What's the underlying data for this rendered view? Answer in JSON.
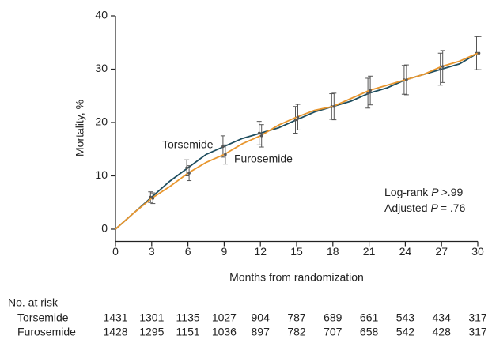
{
  "chart_data": {
    "type": "line",
    "xlabel": "Months from randomization",
    "ylabel": "Mortality, %",
    "xlim": [
      0,
      30
    ],
    "ylim": [
      -2.3,
      40
    ],
    "xticks": [
      0,
      3,
      6,
      9,
      12,
      15,
      18,
      21,
      24,
      27,
      30
    ],
    "yticks": [
      0,
      10,
      20,
      30,
      40
    ],
    "x": [
      0,
      1.5,
      3,
      4.5,
      6,
      7.5,
      9,
      10.5,
      12,
      13.5,
      15,
      16.5,
      18,
      19.5,
      21,
      22.5,
      24,
      25.5,
      27,
      28.5,
      30
    ],
    "series": [
      {
        "name": "Torsemide",
        "color": "#1f4e5f",
        "values": [
          0,
          3,
          6,
          9,
          11.5,
          14,
          15.5,
          17,
          18,
          19,
          20.5,
          22,
          23,
          24,
          25.5,
          26.5,
          28,
          29,
          30,
          31,
          33
        ],
        "bars_x": [
          3,
          6,
          9,
          12,
          15,
          18,
          21,
          24,
          27,
          30
        ],
        "bars_values": [
          6,
          11.5,
          15.5,
          18,
          20.5,
          23,
          25.5,
          28,
          30,
          33
        ],
        "bars_errors": [
          1,
          1.5,
          2,
          2.2,
          2.5,
          2.4,
          2.8,
          2.7,
          3,
          3.1
        ]
      },
      {
        "name": "Furosemide",
        "color": "#e8962e",
        "values": [
          0,
          3,
          5.8,
          8,
          10.5,
          12.5,
          14,
          16,
          17.5,
          19.5,
          21,
          22.3,
          23,
          24.5,
          26,
          27,
          28,
          29,
          30.5,
          31.5,
          33
        ],
        "bars_x": [
          3,
          6,
          9,
          12,
          15,
          18,
          21,
          24,
          27,
          30
        ],
        "bars_values": [
          5.8,
          10.5,
          14,
          17.5,
          21,
          23,
          26,
          28,
          30.5,
          33
        ],
        "bars_errors": [
          1,
          1.4,
          1.8,
          2.1,
          2.4,
          2.5,
          2.7,
          2.8,
          3,
          3.1
        ]
      }
    ],
    "stats": [
      {
        "prefix": "Log-rank",
        "symbol": "P",
        "rest": ">.99"
      },
      {
        "prefix": "Adjusted",
        "symbol": "P",
        "rest": "= .76"
      }
    ],
    "risk_table": {
      "title": "No. at risk",
      "rows": [
        {
          "label": "Torsemide",
          "counts": [
            1431,
            1301,
            1135,
            1027,
            904,
            787,
            689,
            661,
            543,
            434,
            317
          ]
        },
        {
          "label": "Furosemide",
          "counts": [
            1428,
            1295,
            1151,
            1036,
            897,
            782,
            707,
            658,
            542,
            428,
            317
          ]
        }
      ]
    }
  }
}
